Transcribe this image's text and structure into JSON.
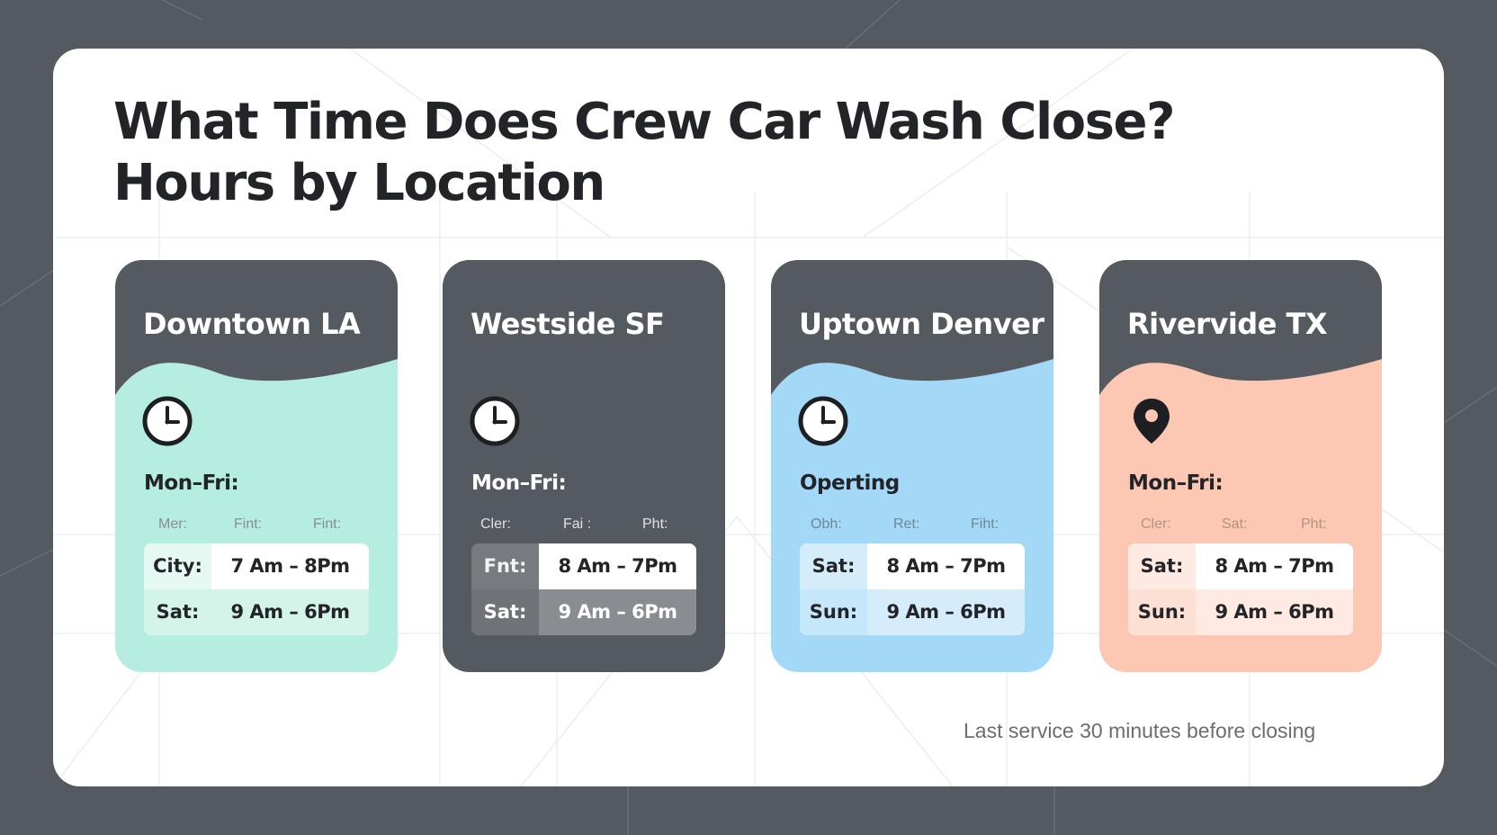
{
  "title": {
    "line1": "What Time Does Crew Car Wash Close?",
    "line2": "Hours by Location"
  },
  "colors": {
    "frame": "#555a60",
    "card_header": "#555a60",
    "mint": "#b5ede0",
    "dark": "#555a60",
    "blue": "#a3d8f7",
    "peach": "#fcc8b3"
  },
  "cards": [
    {
      "name": "Downtown LA",
      "icon": "clock-icon",
      "label": "Mon–Fri:",
      "subheaders": [
        "Mer:",
        "Fint:",
        "Fint:"
      ],
      "rows": [
        {
          "day": "City:",
          "time": "7 Am – 8Pm"
        },
        {
          "day": "Sat:",
          "time": "9 Am – 6Pm"
        }
      ]
    },
    {
      "name": "Westside SF",
      "icon": "clock-icon",
      "label": "Mon–Fri:",
      "subheaders": [
        "Cler:",
        "Fai :",
        "Pht:"
      ],
      "rows": [
        {
          "day": "Fnt:",
          "time": "8 Am – 7Pm"
        },
        {
          "day": "Sat:",
          "time": "9 Am – 6Pm"
        }
      ]
    },
    {
      "name": "Uptown Denver",
      "icon": "clock-icon",
      "label": "Operting",
      "subheaders": [
        "Obh:",
        "Ret:",
        "Fiht:"
      ],
      "rows": [
        {
          "day": "Sat:",
          "time": "8 Am – 7Pm"
        },
        {
          "day": "Sun:",
          "time": "9 Am – 6Pm"
        }
      ]
    },
    {
      "name": "Rivervide TX",
      "icon": "map-pin-icon",
      "label": "Mon–Fri:",
      "subheaders": [
        "Cler:",
        "Sat:",
        "Pht:"
      ],
      "rows": [
        {
          "day": "Sat:",
          "time": "8 Am – 7Pm"
        },
        {
          "day": "Sun:",
          "time": "9 Am – 6Pm"
        }
      ]
    }
  ],
  "footnote": "Last service 30 minutes before closing"
}
